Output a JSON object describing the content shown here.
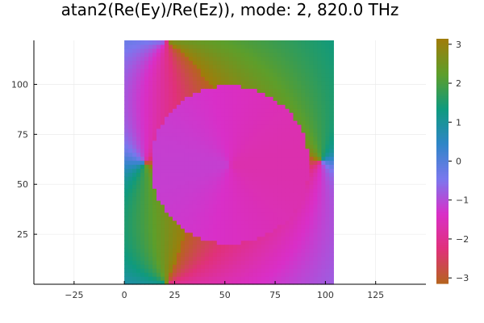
{
  "chart_data": {
    "type": "heatmap",
    "title": "atan2(Re(Ey)/Re(Ez)), mode: 2, 820.0 THz",
    "xlabel": "",
    "ylabel": "",
    "xlim": [
      -45,
      150
    ],
    "ylim": [
      0,
      122
    ],
    "x_ticks": [
      -25,
      0,
      25,
      50,
      75,
      100,
      125
    ],
    "y_ticks": [
      25,
      50,
      75,
      100
    ],
    "data_extent": {
      "x": [
        0,
        104
      ],
      "y": [
        0,
        122
      ]
    },
    "circle": {
      "center": [
        52.5,
        60
      ],
      "radius": 39.5
    },
    "colorbar": {
      "range": [
        -3.14159,
        3.14159
      ],
      "ticks": [
        -3,
        -2,
        -1,
        0,
        1,
        2,
        3
      ],
      "colormap": [
        "#b5651d",
        "#e0317a",
        "#d92fc8",
        "#7a78ee",
        "#2f86c8",
        "#0f9a7e",
        "#5e9e2a",
        "#a07c0a"
      ]
    },
    "grid": true,
    "legend": "none"
  }
}
